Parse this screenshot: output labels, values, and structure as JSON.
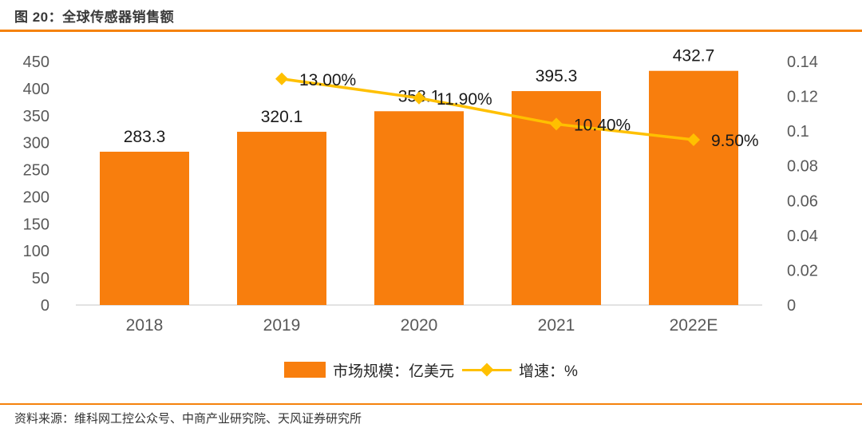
{
  "header": {
    "title": "图 20：全球传感器销售额"
  },
  "footer": {
    "source": "资料来源：维科网工控公众号、中商产业研究院、天风证券研究所"
  },
  "colors": {
    "bar": "#f87e0d",
    "line": "#ffc000",
    "accent_rule": "#f5820d",
    "axis_text": "#595959",
    "value_text": "#1a1a1a",
    "baseline": "#d9d9d9"
  },
  "legend": {
    "items": [
      {
        "type": "bar",
        "label": "市场规模：亿美元"
      },
      {
        "type": "line",
        "label": "增速：%"
      }
    ]
  },
  "chart_data": {
    "type": "bar+line",
    "title": "全球传感器销售额",
    "categories": [
      "2018",
      "2019",
      "2020",
      "2021",
      "2022E"
    ],
    "series": [
      {
        "name": "市场规模：亿美元",
        "type": "bar",
        "axis": "left",
        "values": [
          283.3,
          320.1,
          358.1,
          395.3,
          432.7
        ],
        "labels": [
          "283.3",
          "320.1",
          "358.1",
          "395.3",
          "432.7"
        ]
      },
      {
        "name": "增速：%",
        "type": "line",
        "axis": "right",
        "values": [
          null,
          0.13,
          0.119,
          0.104,
          0.095
        ],
        "labels": [
          "",
          "13.00%",
          "11.90%",
          "10.40%",
          "9.50%"
        ]
      }
    ],
    "left_axis": {
      "min": 0,
      "max": 450,
      "ticks": [
        0,
        50,
        100,
        150,
        200,
        250,
        300,
        350,
        400,
        450
      ]
    },
    "right_axis": {
      "min": 0,
      "max": 0.14,
      "ticks": [
        "0",
        "0.02",
        "0.04",
        "0.06",
        "0.08",
        "0.1",
        "0.12",
        "0.14"
      ]
    },
    "grid": false,
    "legend_position": "bottom"
  }
}
